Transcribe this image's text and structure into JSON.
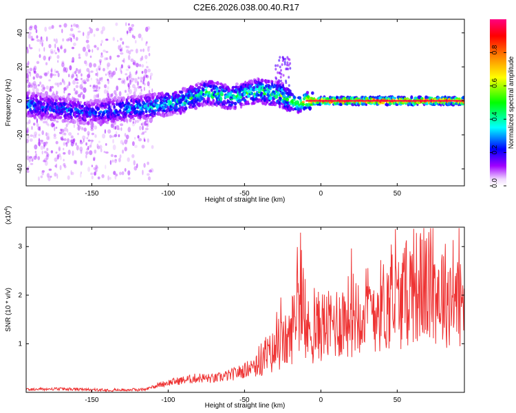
{
  "title": "C2E6.2026.038.00.40.R17",
  "chart_data": [
    {
      "type": "heatmap",
      "title": "C2E6.2026.038.00.40.R17",
      "xlabel": "Height of straight line (km)",
      "ylabel": "Frequency (Hz)",
      "xlim": [
        -193,
        94
      ],
      "ylim": [
        -50,
        48
      ],
      "xticks": [
        -150,
        -100,
        -50,
        0,
        50
      ],
      "yticks": [
        -40,
        -20,
        0,
        20,
        40
      ],
      "colorbar": {
        "label": "Normalized spectral amplitude",
        "range": [
          0.0,
          1.0
        ],
        "ticks": [
          0.0,
          0.2,
          0.4,
          0.6,
          0.8
        ],
        "colormap": [
          "#ffffff",
          "#a000ff",
          "#0000ff",
          "#00ffff",
          "#00ff00",
          "#ffff00",
          "#ff8000",
          "#ff0000",
          "#ff0080"
        ]
      },
      "ridge": [
        {
          "x": -193,
          "f": -2,
          "amp": 0.35
        },
        {
          "x": -170,
          "f": -5,
          "amp": 0.3
        },
        {
          "x": -150,
          "f": -7,
          "amp": 0.3
        },
        {
          "x": -130,
          "f": -5,
          "amp": 0.35
        },
        {
          "x": -110,
          "f": -3,
          "amp": 0.4
        },
        {
          "x": -90,
          "f": 0,
          "amp": 0.45
        },
        {
          "x": -75,
          "f": 5,
          "amp": 0.5
        },
        {
          "x": -60,
          "f": 2,
          "amp": 0.45
        },
        {
          "x": -40,
          "f": 6,
          "amp": 0.5
        },
        {
          "x": -25,
          "f": 3,
          "amp": 0.55
        },
        {
          "x": -15,
          "f": -2,
          "amp": 0.55
        },
        {
          "x": -10,
          "f": 0,
          "amp": 0.75
        },
        {
          "x": 0,
          "f": 0,
          "amp": 0.9
        },
        {
          "x": 50,
          "f": 0,
          "amp": 0.95
        },
        {
          "x": 94,
          "f": 0,
          "amp": 0.9
        }
      ]
    },
    {
      "type": "line",
      "xlabel": "Height of straight line (km)",
      "ylabel": "SNR (10 * v/v)",
      "scale_note": "(x10^4)",
      "scale_base": "(x10",
      "scale_exp": "4",
      "scale_close": ")",
      "xlim": [
        -193,
        94
      ],
      "ylim": [
        0,
        3.4
      ],
      "xticks": [
        -150,
        -100,
        -50,
        0,
        50
      ],
      "yticks": [
        1,
        2,
        3
      ],
      "color": "#ee3333",
      "series": [
        {
          "name": "SNR",
          "x": [
            -193,
            -170,
            -150,
            -130,
            -115,
            -110,
            -100,
            -90,
            -80,
            -70,
            -60,
            -50,
            -45,
            -40,
            -35,
            -30,
            -25,
            -20,
            -15,
            -12,
            -8,
            -5,
            0,
            5,
            10,
            20,
            25,
            30,
            40,
            50,
            55,
            60,
            70,
            80,
            88,
            94
          ],
          "y": [
            0.06,
            0.07,
            0.05,
            0.05,
            0.06,
            0.12,
            0.2,
            0.25,
            0.3,
            0.28,
            0.35,
            0.45,
            0.55,
            0.65,
            0.75,
            0.85,
            1.0,
            1.1,
            2.0,
            1.3,
            1.25,
            1.25,
            1.4,
            1.35,
            1.45,
            1.6,
            1.75,
            1.7,
            1.8,
            1.85,
            2.0,
            2.2,
            2.15,
            2.05,
            1.95,
            1.8
          ]
        }
      ]
    }
  ]
}
